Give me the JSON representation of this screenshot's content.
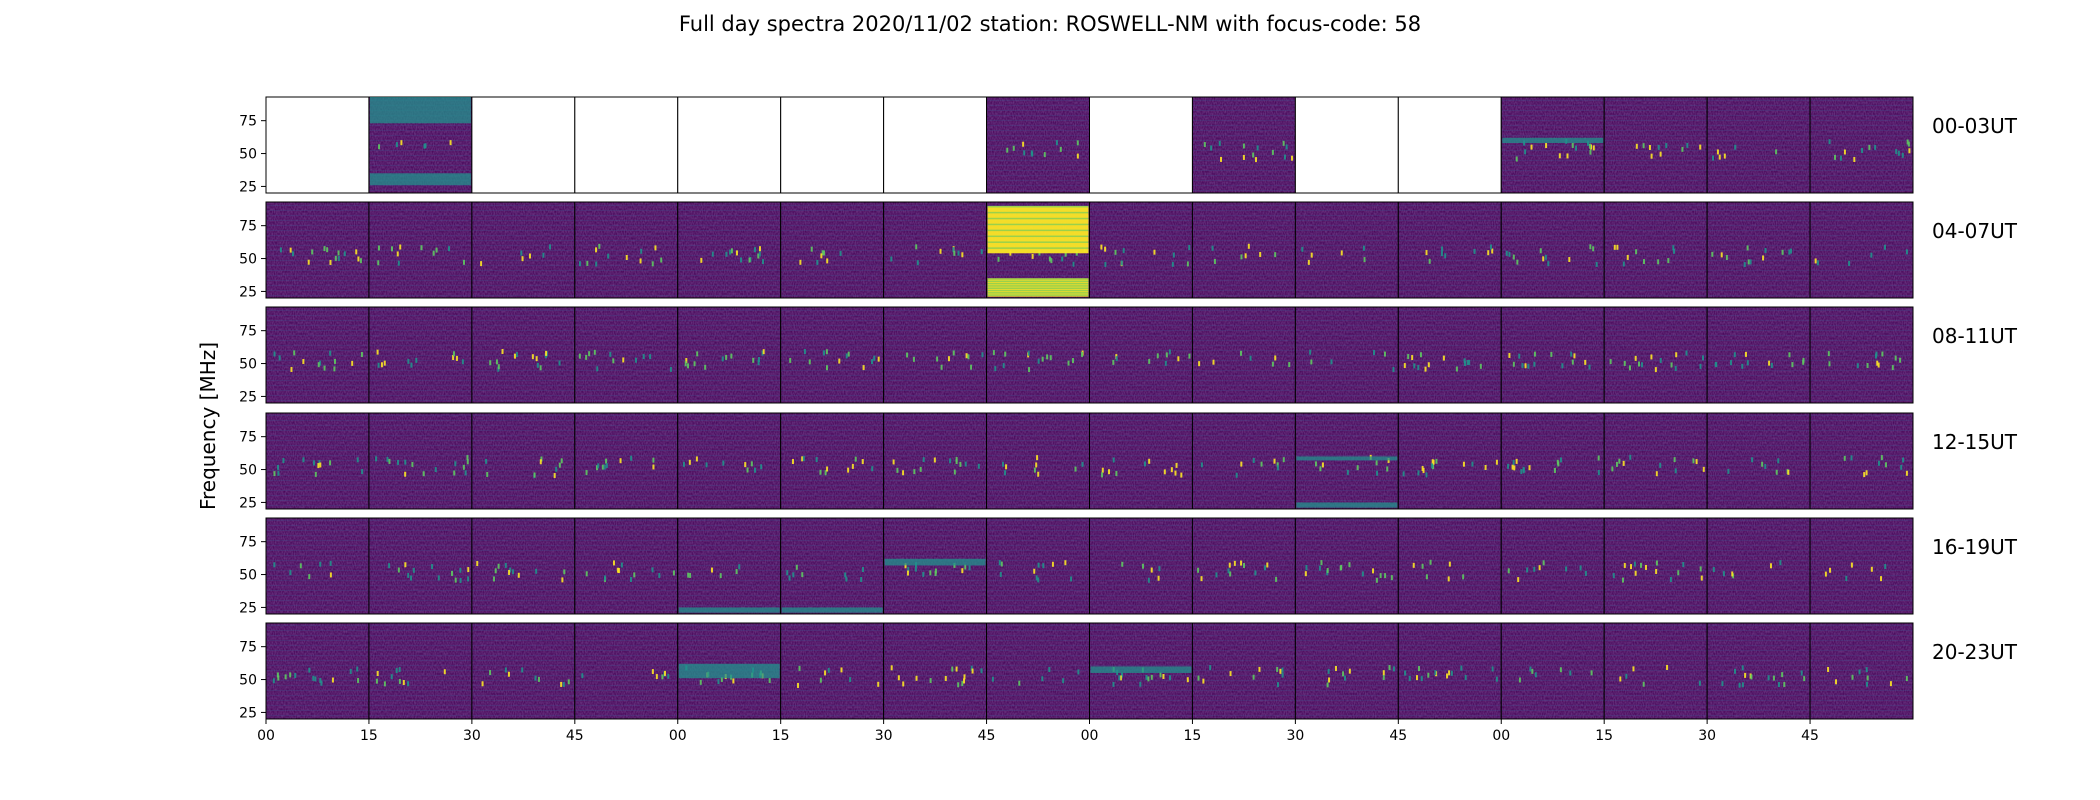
{
  "chart_data": {
    "type": "heatmap",
    "title": "Full day spectra 2020/11/02 station: ROSWELL-NM with focus-code: 58",
    "ylabel": "Frequency [MHz]",
    "y_ticks": [
      "25",
      "50",
      "75"
    ],
    "ylim": [
      20,
      93
    ],
    "x_tick_labels": [
      "00",
      "15",
      "30",
      "45",
      "00",
      "15",
      "30",
      "45",
      "00",
      "15",
      "30",
      "45",
      "00",
      "15",
      "30",
      "45"
    ],
    "colormap": "viridis",
    "row_labels": [
      "00-03UT",
      "04-07UT",
      "08-11UT",
      "12-15UT",
      "16-19UT",
      "20-23UT"
    ],
    "panels_per_row": 16,
    "panel_data_available": [
      [
        0,
        1,
        0,
        0,
        0,
        0,
        0,
        1,
        0,
        1,
        0,
        0,
        1,
        1,
        1,
        1
      ],
      [
        1,
        1,
        1,
        1,
        1,
        1,
        1,
        1,
        1,
        1,
        1,
        1,
        1,
        1,
        1,
        1
      ],
      [
        1,
        1,
        1,
        1,
        1,
        1,
        1,
        1,
        1,
        1,
        1,
        1,
        1,
        1,
        1,
        1
      ],
      [
        1,
        1,
        1,
        1,
        1,
        1,
        1,
        1,
        1,
        1,
        1,
        1,
        1,
        1,
        1,
        1
      ],
      [
        1,
        1,
        1,
        1,
        1,
        1,
        1,
        1,
        1,
        1,
        1,
        1,
        1,
        1,
        1,
        1
      ],
      [
        1,
        1,
        1,
        1,
        1,
        1,
        1,
        1,
        1,
        1,
        1,
        1,
        1,
        1,
        1,
        1
      ]
    ],
    "strong_bands_MHz": [
      {
        "row": 0,
        "panel": 1,
        "bands": [
          [
            73,
            93
          ],
          [
            26,
            35
          ]
        ]
      },
      {
        "row": 0,
        "panel": 12,
        "bands": [
          [
            58,
            62
          ]
        ]
      },
      {
        "row": 1,
        "panel": 7,
        "bands": [
          [
            54,
            90
          ],
          [
            21,
            35
          ]
        ]
      },
      {
        "row": 3,
        "panel": 10,
        "bands": [
          [
            21,
            25
          ],
          [
            57,
            60
          ]
        ]
      },
      {
        "row": 4,
        "panel": 4,
        "bands": [
          [
            21,
            25
          ]
        ]
      },
      {
        "row": 4,
        "panel": 5,
        "bands": [
          [
            21,
            25
          ]
        ]
      },
      {
        "row": 4,
        "panel": 6,
        "bands": [
          [
            57,
            62
          ]
        ]
      },
      {
        "row": 5,
        "panel": 4,
        "bands": [
          [
            51,
            62
          ]
        ]
      },
      {
        "row": 5,
        "panel": 8,
        "bands": [
          [
            55,
            60
          ]
        ]
      }
    ],
    "colors": {
      "background": "#440154",
      "mid": "#3b528b",
      "teal": "#21918c",
      "green": "#5ec962",
      "yellow": "#fde725"
    }
  }
}
